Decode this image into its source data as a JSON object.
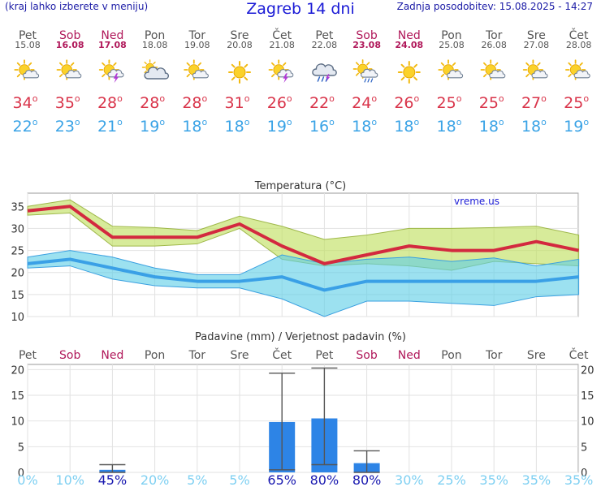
{
  "header": {
    "menu_hint": "(kraj lahko izberete v meniju)",
    "title": "Zagreb 14 dni",
    "updated": "Zadnja posodobitev: 15.08.2025 - 14:27"
  },
  "colors": {
    "weekday": "#555555",
    "weekend": "#b0185a",
    "tmax": "#d9344a",
    "tmin": "#3aa3e6",
    "link": "#1a1ad6",
    "prob_low": "#7fd0f2",
    "prob_high": "#1a1ab0"
  },
  "days": [
    {
      "day": "Pet",
      "date": "15.08",
      "weekend": false,
      "icon": "sun-cloud-icon",
      "tmax": "34",
      "tmin": "22"
    },
    {
      "day": "Sob",
      "date": "16.08",
      "weekend": true,
      "icon": "sun-cloud-icon",
      "tmax": "35",
      "tmin": "23"
    },
    {
      "day": "Ned",
      "date": "17.08",
      "weekend": true,
      "icon": "sun-storm-icon",
      "tmax": "28",
      "tmin": "21"
    },
    {
      "day": "Pon",
      "date": "18.08",
      "weekend": false,
      "icon": "cloud-sun-icon",
      "tmax": "28",
      "tmin": "19"
    },
    {
      "day": "Tor",
      "date": "19.08",
      "weekend": false,
      "icon": "sun-cloud-icon",
      "tmax": "28",
      "tmin": "18"
    },
    {
      "day": "Sre",
      "date": "20.08",
      "weekend": false,
      "icon": "sun-icon",
      "tmax": "31",
      "tmin": "18"
    },
    {
      "day": "Čet",
      "date": "21.08",
      "weekend": false,
      "icon": "sun-storm-icon",
      "tmax": "26",
      "tmin": "19"
    },
    {
      "day": "Pet",
      "date": "22.08",
      "weekend": false,
      "icon": "rain-storm-icon",
      "tmax": "22",
      "tmin": "16"
    },
    {
      "day": "Sob",
      "date": "23.08",
      "weekend": true,
      "icon": "sun-rain-icon",
      "tmax": "24",
      "tmin": "18"
    },
    {
      "day": "Ned",
      "date": "24.08",
      "weekend": true,
      "icon": "sun-icon",
      "tmax": "26",
      "tmin": "18"
    },
    {
      "day": "Pon",
      "date": "25.08",
      "weekend": false,
      "icon": "sun-cloud-icon",
      "tmax": "25",
      "tmin": "18"
    },
    {
      "day": "Tor",
      "date": "26.08",
      "weekend": false,
      "icon": "sun-cloud-icon",
      "tmax": "25",
      "tmin": "18"
    },
    {
      "day": "Sre",
      "date": "27.08",
      "weekend": false,
      "icon": "sun-cloud-icon",
      "tmax": "27",
      "tmin": "18"
    },
    {
      "day": "Čet",
      "date": "28.08",
      "weekend": false,
      "icon": "sun-cloud-icon",
      "tmax": "25",
      "tmin": "19"
    }
  ],
  "chart_data": [
    {
      "type": "line",
      "title": "Temperatura (°C)",
      "watermark": "vreme.us",
      "ylim": [
        10,
        38
      ],
      "yticks": [
        10,
        15,
        20,
        25,
        30,
        35
      ],
      "grid": true,
      "series": [
        {
          "role": "tmax",
          "values": [
            34,
            35,
            28,
            28,
            28,
            31,
            26,
            22,
            24,
            26,
            25,
            25,
            27,
            25
          ]
        },
        {
          "role": "tmax_upper",
          "values": [
            35,
            36.5,
            30.5,
            30.2,
            29.5,
            32.8,
            30.5,
            27.5,
            28.5,
            30,
            30,
            30.2,
            30.5,
            28.5
          ]
        },
        {
          "role": "tmax_lower",
          "values": [
            33,
            33.5,
            26,
            26,
            26.5,
            30,
            23,
            21.5,
            22,
            21.5,
            20.5,
            22.5,
            22,
            21.5
          ]
        },
        {
          "role": "tmin",
          "values": [
            22,
            23,
            21,
            19,
            18,
            18,
            19,
            16,
            18,
            18,
            18,
            18,
            18,
            19
          ]
        },
        {
          "role": "tmin_upper",
          "values": [
            23.5,
            25,
            23.5,
            21,
            19.5,
            19.5,
            24,
            22,
            23,
            23.5,
            22.5,
            23.3,
            21.5,
            23
          ]
        },
        {
          "role": "tmin_lower",
          "values": [
            21,
            21.5,
            18.5,
            17,
            16.5,
            16.5,
            14,
            10,
            13.5,
            13.5,
            13,
            12.5,
            14.5,
            15
          ]
        }
      ]
    },
    {
      "type": "bar",
      "title": "Padavine (mm) / Verjetnost padavin (%)",
      "ylim": [
        0,
        21
      ],
      "yticks": [
        0,
        5,
        10,
        15,
        20
      ],
      "grid": true,
      "values": [
        0,
        0,
        0.5,
        0,
        0,
        0,
        9.8,
        10.5,
        1.8,
        0,
        0,
        0,
        0,
        0
      ],
      "error_high": [
        0,
        0,
        1.5,
        0,
        0,
        0,
        19.3,
        20.3,
        4.2,
        0,
        0,
        0,
        0,
        0
      ],
      "error_low": [
        0,
        0,
        0,
        0,
        0,
        0,
        0.5,
        1.5,
        0,
        0,
        0,
        0,
        0,
        0
      ],
      "probabilities": [
        "0%",
        "10%",
        "45%",
        "20%",
        "5%",
        "5%",
        "65%",
        "80%",
        "80%",
        "30%",
        "25%",
        "35%",
        "35%",
        "35%"
      ]
    }
  ]
}
